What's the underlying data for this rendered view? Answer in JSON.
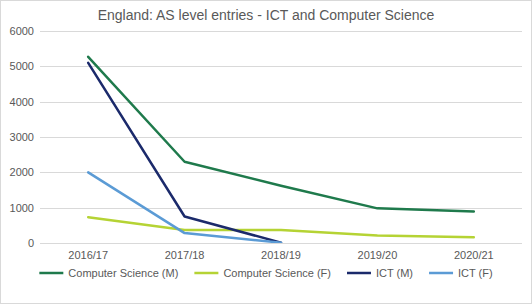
{
  "chart_data": {
    "type": "line",
    "title": "England: AS level entries - ICT and Computer Science",
    "categories": [
      "2016/17",
      "2017/18",
      "2018/19",
      "2019/20",
      "2020/21"
    ],
    "series": [
      {
        "name": "Computer Science (M)",
        "color": "#1f7a4c",
        "values": [
          5270,
          2300,
          1620,
          980,
          890
        ]
      },
      {
        "name": "Computer Science (F)",
        "color": "#b5d334",
        "values": [
          730,
          370,
          370,
          210,
          160
        ]
      },
      {
        "name": "ICT (M)",
        "color": "#1b2a6b",
        "values": [
          5100,
          750,
          10,
          null,
          null
        ]
      },
      {
        "name": "ICT (F)",
        "color": "#5b9bd5",
        "values": [
          2000,
          280,
          10,
          null,
          null
        ]
      }
    ],
    "ylim": [
      0,
      6000
    ],
    "yticks": [
      0,
      1000,
      2000,
      3000,
      4000,
      5000,
      6000
    ],
    "grid": true,
    "legend": "bottom"
  }
}
